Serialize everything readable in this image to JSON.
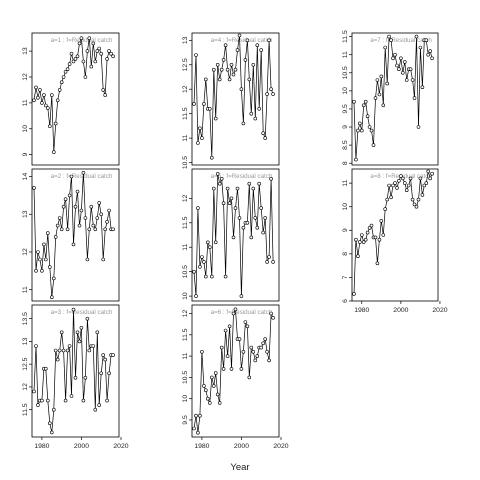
{
  "chart_data": {
    "type": "line",
    "xlabel": "Year",
    "xlim": [
      1975,
      2019
    ],
    "xticks": [
      1980,
      2000,
      2020
    ],
    "marker": "open-circle",
    "line_color": "#000000",
    "panels": [
      {
        "title": "a=1 : f=Residual catch",
        "ylim": [
          8.6,
          13.7
        ],
        "yticks": [
          9,
          10,
          11,
          12,
          13
        ],
        "x": [
          1976,
          1977,
          1978,
          1979,
          1980,
          1981,
          1982,
          1983,
          1984,
          1985,
          1986,
          1987,
          1988,
          1989,
          1990,
          1991,
          1992,
          1993,
          1994,
          1995,
          1996,
          1997,
          1998,
          1999,
          2000,
          2001,
          2002,
          2003,
          2004,
          2005,
          2006,
          2007,
          2008,
          2009,
          2010,
          2011,
          2012,
          2013,
          2014,
          2015,
          2016
        ],
        "y": [
          11.1,
          11.6,
          11.2,
          11.5,
          11.0,
          11.3,
          10.9,
          10.8,
          10.1,
          11.3,
          9.1,
          10.2,
          11.1,
          11.5,
          11.8,
          12.0,
          12.2,
          12.3,
          12.5,
          12.9,
          12.6,
          12.7,
          12.8,
          13.3,
          13.5,
          12.6,
          12.0,
          13.0,
          13.5,
          12.4,
          13.3,
          12.6,
          13.0,
          13.1,
          12.9,
          11.5,
          11.3,
          12.7,
          13.0,
          12.9,
          12.8
        ]
      },
      {
        "title": "a=2 : f=Residual catch",
        "ylim": [
          10.7,
          14.2
        ],
        "yticks": [
          11,
          12,
          13,
          14
        ],
        "x": [
          1976,
          1977,
          1978,
          1979,
          1980,
          1981,
          1982,
          1983,
          1984,
          1985,
          1986,
          1987,
          1988,
          1989,
          1990,
          1991,
          1992,
          1993,
          1994,
          1995,
          1996,
          1997,
          1998,
          1999,
          2000,
          2001,
          2002,
          2003,
          2004,
          2005,
          2006,
          2007,
          2008,
          2009,
          2010,
          2011,
          2012,
          2013,
          2014,
          2015,
          2016
        ],
        "y": [
          13.7,
          11.5,
          12.0,
          11.8,
          11.5,
          12.2,
          11.8,
          12.5,
          11.6,
          10.8,
          11.3,
          12.4,
          12.7,
          12.9,
          12.6,
          13.2,
          13.4,
          12.6,
          13.5,
          14.0,
          12.2,
          13.2,
          13.6,
          12.7,
          13.1,
          14.1,
          12.9,
          11.8,
          12.6,
          13.2,
          12.7,
          12.6,
          12.9,
          13.3,
          13.0,
          11.8,
          12.6,
          12.8,
          13.1,
          12.6,
          12.6
        ]
      },
      {
        "title": "a=3 : f=Residual catch",
        "ylim": [
          10.9,
          13.8
        ],
        "yticks": [
          11.5,
          12,
          12.5,
          13,
          13.5
        ],
        "x": [
          1976,
          1977,
          1978,
          1979,
          1980,
          1981,
          1982,
          1983,
          1984,
          1985,
          1986,
          1987,
          1988,
          1989,
          1990,
          1991,
          1992,
          1993,
          1994,
          1995,
          1996,
          1997,
          1998,
          1999,
          2000,
          2001,
          2002,
          2003,
          2004,
          2005,
          2006,
          2007,
          2008,
          2009,
          2010,
          2011,
          2012,
          2013,
          2014,
          2015,
          2016
        ],
        "y": [
          11.9,
          12.9,
          11.6,
          11.7,
          11.7,
          12.4,
          12.4,
          11.7,
          11.2,
          11.0,
          11.5,
          12.8,
          12.6,
          12.8,
          13.2,
          12.8,
          11.7,
          12.8,
          12.9,
          11.8,
          13.7,
          12.2,
          13.2,
          13.0,
          13.3,
          11.7,
          12.2,
          13.5,
          12.8,
          12.9,
          12.9,
          11.5,
          13.2,
          11.6,
          12.3,
          12.7,
          12.6,
          11.7,
          12.3,
          12.7,
          12.7
        ]
      },
      {
        "title": "a=4 : f=Residual catch",
        "ylim": [
          10.45,
          13.15
        ],
        "yticks": [
          10.5,
          11,
          11.5,
          12,
          12.5,
          13
        ],
        "x": [
          1976,
          1977,
          1978,
          1979,
          1980,
          1981,
          1982,
          1983,
          1984,
          1985,
          1986,
          1987,
          1988,
          1989,
          1990,
          1991,
          1992,
          1993,
          1994,
          1995,
          1996,
          1997,
          1998,
          1999,
          2000,
          2001,
          2002,
          2003,
          2004,
          2005,
          2006,
          2007,
          2008,
          2009,
          2010,
          2011,
          2012,
          2013,
          2014,
          2015,
          2016
        ],
        "y": [
          11.7,
          12.7,
          10.9,
          11.2,
          11.0,
          11.7,
          12.2,
          11.6,
          11.6,
          10.6,
          12.4,
          11.4,
          12.5,
          12.2,
          12.4,
          12.6,
          12.9,
          12.4,
          12.2,
          12.5,
          12.3,
          12.4,
          12.8,
          13.1,
          12.0,
          11.3,
          12.6,
          13.0,
          12.2,
          11.5,
          12.5,
          11.4,
          12.9,
          11.6,
          12.8,
          11.1,
          11.0,
          11.9,
          13.0,
          12.0,
          11.9
        ]
      },
      {
        "title": "a=5 : f=Residual catch",
        "ylim": [
          9.9,
          12.6
        ],
        "yticks": [
          10,
          10.5,
          11,
          11.5,
          12
        ],
        "x": [
          1976,
          1977,
          1978,
          1979,
          1980,
          1981,
          1982,
          1983,
          1984,
          1985,
          1986,
          1987,
          1988,
          1989,
          1990,
          1991,
          1992,
          1993,
          1994,
          1995,
          1996,
          1997,
          1998,
          1999,
          2000,
          2001,
          2002,
          2003,
          2004,
          2005,
          2006,
          2007,
          2008,
          2009,
          2010,
          2011,
          2012,
          2013,
          2014,
          2015,
          2016
        ],
        "y": [
          10.5,
          10.0,
          11.8,
          10.6,
          10.8,
          10.7,
          10.4,
          11.1,
          11.0,
          10.4,
          12.2,
          11.1,
          12.5,
          12.3,
          12.4,
          11.9,
          10.4,
          12.2,
          11.9,
          12.0,
          11.2,
          11.8,
          12.2,
          11.6,
          10.0,
          11.4,
          11.5,
          11.5,
          12.3,
          11.2,
          12.2,
          11.6,
          11.4,
          12.3,
          11.8,
          11.3,
          11.6,
          10.7,
          10.8,
          12.4,
          10.7
        ]
      },
      {
        "title": "a=6 : f=Residual catch",
        "ylim": [
          9.1,
          12.2
        ],
        "yticks": [
          9.5,
          10,
          10.5,
          11,
          11.5,
          12
        ],
        "x": [
          1976,
          1977,
          1978,
          1979,
          1980,
          1981,
          1982,
          1983,
          1984,
          1985,
          1986,
          1987,
          1988,
          1989,
          1990,
          1991,
          1992,
          1993,
          1994,
          1995,
          1996,
          1997,
          1998,
          1999,
          2000,
          2001,
          2002,
          2003,
          2004,
          2005,
          2006,
          2007,
          2008,
          2009,
          2010,
          2011,
          2012,
          2013,
          2014,
          2015,
          2016
        ],
        "y": [
          9.3,
          9.6,
          9.2,
          9.6,
          11.1,
          10.3,
          10.2,
          10.0,
          9.9,
          10.5,
          10.3,
          10.6,
          10.1,
          9.9,
          11.2,
          10.7,
          11.6,
          11.0,
          11.7,
          10.7,
          12.0,
          12.1,
          11.4,
          11.4,
          10.7,
          11.1,
          11.8,
          11.7,
          10.5,
          11.2,
          11.1,
          10.9,
          11.0,
          11.2,
          11.2,
          11.3,
          11.4,
          11.1,
          10.9,
          12.0,
          11.9
        ]
      },
      {
        "title": "a=7 : f=Residual catch",
        "ylim": [
          7.95,
          11.6
        ],
        "yticks": [
          8.0,
          8.5,
          9.0,
          9.5,
          10.0,
          10.5,
          11.0,
          11.5
        ],
        "x": [
          1976,
          1977,
          1978,
          1979,
          1980,
          1981,
          1982,
          1983,
          1984,
          1985,
          1986,
          1987,
          1988,
          1989,
          1990,
          1991,
          1992,
          1993,
          1994,
          1995,
          1996,
          1997,
          1998,
          1999,
          2000,
          2001,
          2002,
          2003,
          2004,
          2005,
          2006,
          2007,
          2008,
          2009,
          2010,
          2011,
          2012,
          2013,
          2014,
          2015,
          2016
        ],
        "y": [
          9.7,
          8.1,
          8.9,
          9.1,
          8.9,
          9.6,
          9.7,
          9.3,
          9.0,
          8.9,
          8.5,
          9.8,
          10.3,
          9.9,
          10.4,
          9.6,
          11.2,
          10.2,
          11.5,
          11.4,
          10.9,
          11.0,
          10.7,
          10.6,
          10.9,
          10.5,
          10.8,
          10.3,
          10.6,
          10.6,
          10.3,
          9.8,
          11.5,
          9.0,
          11.2,
          10.1,
          11.4,
          11.4,
          11.0,
          11.1,
          10.9
        ]
      },
      {
        "title": "a=8 : f=Residual catch",
        "ylim": [
          6.0,
          11.6
        ],
        "yticks": [
          6,
          7,
          8,
          9,
          10,
          11
        ],
        "x": [
          1976,
          1977,
          1978,
          1979,
          1980,
          1981,
          1982,
          1983,
          1984,
          1985,
          1986,
          1987,
          1988,
          1989,
          1990,
          1991,
          1992,
          1993,
          1994,
          1995,
          1996,
          1997,
          1998,
          1999,
          2000,
          2001,
          2002,
          2003,
          2004,
          2005,
          2006,
          2007,
          2008,
          2009,
          2010,
          2011,
          2012,
          2013,
          2014,
          2015,
          2016
        ],
        "y": [
          6.3,
          8.6,
          7.9,
          8.5,
          8.8,
          8.5,
          8.6,
          8.9,
          9.1,
          9.2,
          8.7,
          8.7,
          7.6,
          8.6,
          9.4,
          8.8,
          9.9,
          10.3,
          10.9,
          10.4,
          10.9,
          11.0,
          10.8,
          11.1,
          11.3,
          11.2,
          11.0,
          10.7,
          10.9,
          11.2,
          10.3,
          10.1,
          10.0,
          10.3,
          11.2,
          10.5,
          10.9,
          11.0,
          11.5,
          11.2,
          11.4
        ]
      }
    ]
  }
}
